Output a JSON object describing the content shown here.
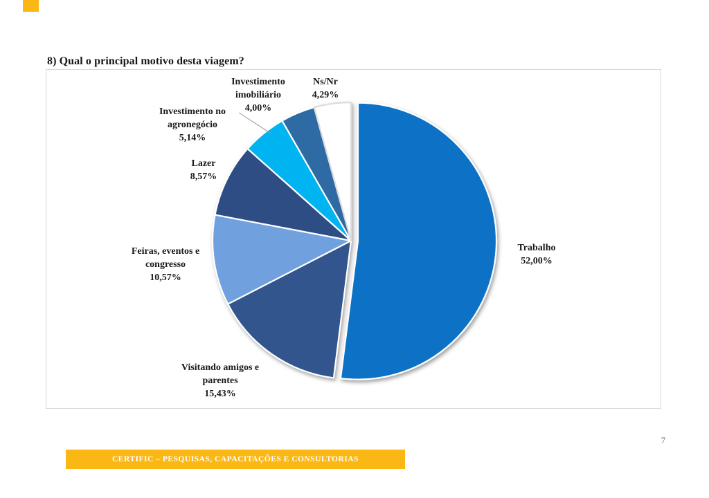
{
  "page": {
    "title": "8) Qual o principal motivo desta viagem?",
    "page_number": "7"
  },
  "footer": {
    "text": "CERTIFIC – PESQUISAS, CAPACITAÇÕES E CONSULTORIAS",
    "bg_color": "#FBB713",
    "text_color": "#FFFFFF"
  },
  "accent_square": {
    "color": "#FBB713"
  },
  "chart_data": {
    "type": "pie",
    "title": "8) Qual o principal motivo desta viagem?",
    "direction": "clockwise",
    "start_angle_deg": 0,
    "value_format": "percent, comma decimal separator",
    "legend_position": "none (outside data labels)",
    "slices": [
      {
        "label": "Trabalho",
        "value": 52.0,
        "display": "52,00%",
        "color": "#0F72C6",
        "exploded": true,
        "label_lines": [
          "Trabalho",
          "52,00%"
        ]
      },
      {
        "label": "Visitando amigos e parentes",
        "value": 15.43,
        "display": "15,43%",
        "color": "#33548E",
        "exploded": false,
        "label_lines": [
          "Visitando amigos e",
          "parentes",
          "15,43%"
        ]
      },
      {
        "label": "Feiras, eventos e congresso",
        "value": 10.57,
        "display": "10,57%",
        "color": "#70A1DE",
        "exploded": false,
        "label_lines": [
          "Feiras, eventos e",
          "congresso",
          "10,57%"
        ]
      },
      {
        "label": "Lazer",
        "value": 8.57,
        "display": "8,57%",
        "color": "#2E4D85",
        "exploded": false,
        "label_lines": [
          "Lazer",
          "8,57%"
        ]
      },
      {
        "label": "Investimento no agronegócio",
        "value": 5.14,
        "display": "5,14%",
        "color": "#00B3F1",
        "exploded": false,
        "label_lines": [
          "Investimento no",
          "agronegócio",
          "5,14%"
        ]
      },
      {
        "label": "Investimento imobiliário",
        "value": 4.0,
        "display": "4,00%",
        "color": "#2E6BA3",
        "exploded": false,
        "label_lines": [
          "Investimento",
          "imobiliário",
          "4,00%"
        ]
      },
      {
        "label": "Ns/Nr",
        "value": 4.29,
        "display": "4,29%",
        "color": "#FFFFFF",
        "exploded": false,
        "label_lines": [
          "Ns/Nr",
          "4,29%"
        ]
      }
    ]
  }
}
